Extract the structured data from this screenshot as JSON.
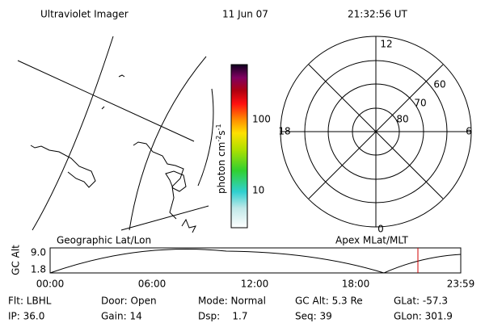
{
  "header": {
    "title": "Ultraviolet Imager",
    "date": "11 Jun 07",
    "time": "21:32:56 UT"
  },
  "colorbar": {
    "unit": [
      "photon cm",
      "-2",
      "s",
      "-1"
    ],
    "ticks": [
      "100",
      "10"
    ]
  },
  "polar": {
    "mlt": [
      "12",
      "6",
      "18",
      "0"
    ],
    "mlat": [
      "60",
      "70",
      "80"
    ]
  },
  "altitude_plot": {
    "left_title": "Geographic Lat/Lon",
    "right_title": "Apex MLat/MLT",
    "ylabel": "GC Alt",
    "yticks": [
      "9.0",
      "1.8"
    ],
    "xticks": [
      "00:00",
      "06:00",
      "12:00",
      "18:00",
      "23:59"
    ]
  },
  "info": [
    [
      "Flt: LBHL",
      "Door: Open",
      "Mode: Normal",
      "GC Alt: 5.3 Re",
      "GLat: -57.3"
    ],
    [
      "IP: 36.0",
      "Gain: 14",
      "Dsp:    1.7",
      "Seq: 39",
      "GLon: 301.9"
    ]
  ]
}
